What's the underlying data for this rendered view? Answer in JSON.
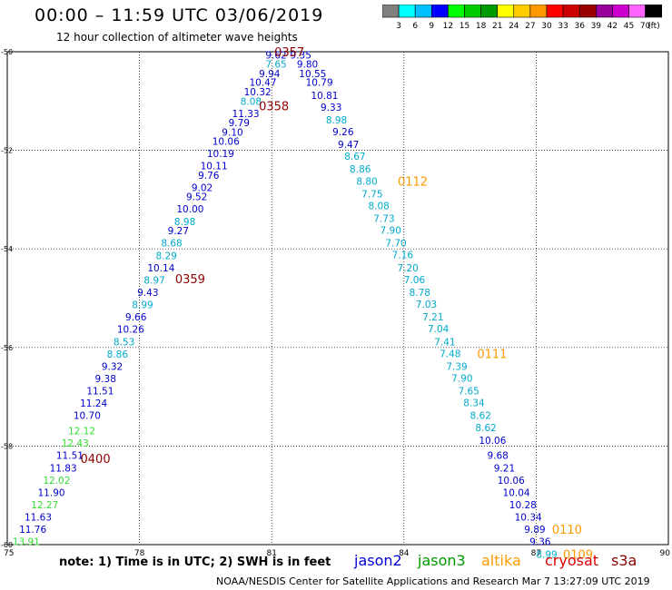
{
  "header": {
    "title": "00:00 – 11:59 UTC 03/06/2019",
    "subtitle": "12 hour collection of altimeter wave heights"
  },
  "colorbar": {
    "unit": "(ft)",
    "labels": [
      "3",
      "6",
      "9",
      "12",
      "15",
      "18",
      "21",
      "24",
      "27",
      "30",
      "33",
      "36",
      "39",
      "42",
      "45",
      "70"
    ],
    "colors": [
      "#808080",
      "#00ffff",
      "#00bfff",
      "#0000ff",
      "#00ff00",
      "#00cc00",
      "#009900",
      "#ffff00",
      "#ffcc00",
      "#ff9900",
      "#ff0000",
      "#cc0000",
      "#990000",
      "#990099",
      "#cc00cc",
      "#ff66ff",
      "#000000"
    ]
  },
  "map": {
    "x_ticks": [
      "75",
      "78",
      "81",
      "84",
      "87",
      "90"
    ],
    "y_ticks": [
      "-50",
      "-52",
      "-54",
      "-56",
      "-58",
      "-60"
    ],
    "x_range": [
      75,
      90
    ],
    "y_range": [
      -60,
      -50
    ],
    "gridlines": true
  },
  "observations": [
    {
      "lon": 81.1,
      "lat": -50.06,
      "v": "9.62",
      "c": "#0000cc"
    },
    {
      "lon": 81.1,
      "lat": -50.25,
      "v": "7.65",
      "c": "#00aacc"
    },
    {
      "lon": 80.95,
      "lat": -50.44,
      "v": "9.94",
      "c": "#0000cc"
    },
    {
      "lon": 80.8,
      "lat": -50.62,
      "v": "10.47",
      "c": "#0000cc"
    },
    {
      "lon": 80.68,
      "lat": -50.81,
      "v": "10.32",
      "c": "#0000cc"
    },
    {
      "lon": 80.53,
      "lat": -51.0,
      "v": "8.08",
      "c": "#00aacc"
    },
    {
      "lon": 80.41,
      "lat": -51.25,
      "v": "11.33",
      "c": "#0000cc"
    },
    {
      "lon": 80.26,
      "lat": -51.44,
      "v": "9.79",
      "c": "#0000cc"
    },
    {
      "lon": 80.11,
      "lat": -51.63,
      "v": "9.10",
      "c": "#0000cc"
    },
    {
      "lon": 79.96,
      "lat": -51.81,
      "v": "10.06",
      "c": "#0000cc"
    },
    {
      "lon": 79.84,
      "lat": -52.06,
      "v": "10.19",
      "c": "#0000cc"
    },
    {
      "lon": 79.69,
      "lat": -52.31,
      "v": "10.11",
      "c": "#0000cc"
    },
    {
      "lon": 79.57,
      "lat": -52.5,
      "v": "9.76",
      "c": "#0000cc"
    },
    {
      "lon": 79.42,
      "lat": -52.75,
      "v": "9.02",
      "c": "#0000cc"
    },
    {
      "lon": 79.3,
      "lat": -52.94,
      "v": "9.52",
      "c": "#0000cc"
    },
    {
      "lon": 79.15,
      "lat": -53.19,
      "v": "10.00",
      "c": "#0000cc"
    },
    {
      "lon": 79.03,
      "lat": -53.44,
      "v": "8.98",
      "c": "#00aacc"
    },
    {
      "lon": 78.88,
      "lat": -53.63,
      "v": "9.27",
      "c": "#0000cc"
    },
    {
      "lon": 78.73,
      "lat": -53.88,
      "v": "8.68",
      "c": "#00aacc"
    },
    {
      "lon": 78.61,
      "lat": -54.13,
      "v": "8.29",
      "c": "#00aacc"
    },
    {
      "lon": 78.49,
      "lat": -54.38,
      "v": "10.14",
      "c": "#0000cc"
    },
    {
      "lon": 78.34,
      "lat": -54.63,
      "v": "8.97",
      "c": "#00aacc"
    },
    {
      "lon": 78.19,
      "lat": -54.88,
      "v": "9.43",
      "c": "#0000cc"
    },
    {
      "lon": 78.07,
      "lat": -55.13,
      "v": "8.99",
      "c": "#00aacc"
    },
    {
      "lon": 77.92,
      "lat": -55.38,
      "v": "9.66",
      "c": "#0000cc"
    },
    {
      "lon": 77.8,
      "lat": -55.63,
      "v": "10.26",
      "c": "#0000cc"
    },
    {
      "lon": 77.65,
      "lat": -55.88,
      "v": "8.53",
      "c": "#00aacc"
    },
    {
      "lon": 77.5,
      "lat": -56.13,
      "v": "8.86",
      "c": "#00aacc"
    },
    {
      "lon": 77.38,
      "lat": -56.38,
      "v": "9.32",
      "c": "#0000cc"
    },
    {
      "lon": 77.23,
      "lat": -56.63,
      "v": "9.38",
      "c": "#0000cc"
    },
    {
      "lon": 77.11,
      "lat": -56.88,
      "v": "11.51",
      "c": "#0000cc"
    },
    {
      "lon": 76.96,
      "lat": -57.13,
      "v": "11.24",
      "c": "#0000cc"
    },
    {
      "lon": 76.81,
      "lat": -57.38,
      "v": "10.70",
      "c": "#0000cc"
    },
    {
      "lon": 76.69,
      "lat": -57.69,
      "v": "12.12",
      "c": "#33dd33"
    },
    {
      "lon": 76.54,
      "lat": -57.94,
      "v": "12.43",
      "c": "#33dd33"
    },
    {
      "lon": 76.42,
      "lat": -58.19,
      "v": "11.51",
      "c": "#0000cc"
    },
    {
      "lon": 76.27,
      "lat": -58.44,
      "v": "11.83",
      "c": "#0000cc"
    },
    {
      "lon": 76.12,
      "lat": -58.69,
      "v": "12.02",
      "c": "#33dd33"
    },
    {
      "lon": 76.0,
      "lat": -58.94,
      "v": "11.90",
      "c": "#0000cc"
    },
    {
      "lon": 75.85,
      "lat": -59.19,
      "v": "12.27",
      "c": "#33dd33"
    },
    {
      "lon": 75.7,
      "lat": -59.44,
      "v": "11.63",
      "c": "#0000cc"
    },
    {
      "lon": 75.58,
      "lat": -59.69,
      "v": "11.76",
      "c": "#0000cc"
    },
    {
      "lon": 75.43,
      "lat": -59.94,
      "v": "13.91",
      "c": "#33dd33"
    },
    {
      "lon": 81.66,
      "lat": -50.06,
      "v": "9.35",
      "c": "#0000cc"
    },
    {
      "lon": 81.81,
      "lat": -50.25,
      "v": "9.80",
      "c": "#0000cc"
    },
    {
      "lon": 81.93,
      "lat": -50.44,
      "v": "10.55",
      "c": "#0000cc"
    },
    {
      "lon": 82.08,
      "lat": -50.62,
      "v": "10.79",
      "c": "#0000cc"
    },
    {
      "lon": 82.2,
      "lat": -50.88,
      "v": "10.81",
      "c": "#0000cc"
    },
    {
      "lon": 82.35,
      "lat": -51.12,
      "v": "9.33",
      "c": "#0000cc"
    },
    {
      "lon": 82.47,
      "lat": -51.38,
      "v": "8.98",
      "c": "#00aacc"
    },
    {
      "lon": 82.62,
      "lat": -51.62,
      "v": "9.26",
      "c": "#0000cc"
    },
    {
      "lon": 82.74,
      "lat": -51.88,
      "v": "9.47",
      "c": "#0000cc"
    },
    {
      "lon": 82.89,
      "lat": -52.12,
      "v": "8.67",
      "c": "#00aacc"
    },
    {
      "lon": 83.01,
      "lat": -52.38,
      "v": "8.86",
      "c": "#00aacc"
    },
    {
      "lon": 83.16,
      "lat": -52.62,
      "v": "8.80",
      "c": "#00aacc"
    },
    {
      "lon": 83.28,
      "lat": -52.88,
      "v": "7.75",
      "c": "#00aacc"
    },
    {
      "lon": 83.43,
      "lat": -53.12,
      "v": "8.08",
      "c": "#00aacc"
    },
    {
      "lon": 83.55,
      "lat": -53.38,
      "v": "7.73",
      "c": "#00aacc"
    },
    {
      "lon": 83.7,
      "lat": -53.62,
      "v": "7.90",
      "c": "#00aacc"
    },
    {
      "lon": 83.82,
      "lat": -53.88,
      "v": "7.70",
      "c": "#00aacc"
    },
    {
      "lon": 83.97,
      "lat": -54.12,
      "v": "7.16",
      "c": "#00aacc"
    },
    {
      "lon": 84.09,
      "lat": -54.38,
      "v": "7.20",
      "c": "#00aacc"
    },
    {
      "lon": 84.24,
      "lat": -54.62,
      "v": "7.06",
      "c": "#00aacc"
    },
    {
      "lon": 84.36,
      "lat": -54.88,
      "v": "8.78",
      "c": "#00aacc"
    },
    {
      "lon": 84.51,
      "lat": -55.12,
      "v": "7.03",
      "c": "#00aacc"
    },
    {
      "lon": 84.66,
      "lat": -55.38,
      "v": "7.21",
      "c": "#00aacc"
    },
    {
      "lon": 84.78,
      "lat": -55.62,
      "v": "7.04",
      "c": "#00aacc"
    },
    {
      "lon": 84.93,
      "lat": -55.88,
      "v": "7.41",
      "c": "#00aacc"
    },
    {
      "lon": 85.05,
      "lat": -56.12,
      "v": "7.48",
      "c": "#00aacc"
    },
    {
      "lon": 85.2,
      "lat": -56.38,
      "v": "7.39",
      "c": "#00aacc"
    },
    {
      "lon": 85.32,
      "lat": -56.62,
      "v": "7.90",
      "c": "#00aacc"
    },
    {
      "lon": 85.47,
      "lat": -56.88,
      "v": "7.65",
      "c": "#00aacc"
    },
    {
      "lon": 85.59,
      "lat": -57.12,
      "v": "8.34",
      "c": "#00aacc"
    },
    {
      "lon": 85.74,
      "lat": -57.38,
      "v": "8.62",
      "c": "#00aacc"
    },
    {
      "lon": 85.86,
      "lat": -57.62,
      "v": "8.62",
      "c": "#00aacc"
    },
    {
      "lon": 86.01,
      "lat": -57.88,
      "v": "10.06",
      "c": "#0000cc"
    },
    {
      "lon": 86.13,
      "lat": -58.19,
      "v": "9.68",
      "c": "#0000cc"
    },
    {
      "lon": 86.28,
      "lat": -58.44,
      "v": "9.21",
      "c": "#0000cc"
    },
    {
      "lon": 86.43,
      "lat": -58.69,
      "v": "10.06",
      "c": "#0000cc"
    },
    {
      "lon": 86.55,
      "lat": -58.94,
      "v": "10.04",
      "c": "#0000cc"
    },
    {
      "lon": 86.7,
      "lat": -59.19,
      "v": "10.28",
      "c": "#0000cc"
    },
    {
      "lon": 86.82,
      "lat": -59.44,
      "v": "10.34",
      "c": "#0000cc"
    },
    {
      "lon": 86.97,
      "lat": -59.69,
      "v": "9.89",
      "c": "#0000cc"
    },
    {
      "lon": 87.09,
      "lat": -59.94,
      "v": "9.36",
      "c": "#0000cc"
    },
    {
      "lon": 87.24,
      "lat": -60.19,
      "v": "8.99",
      "c": "#00aacc"
    }
  ],
  "time_labels": [
    {
      "lon": 81.4,
      "lat": -50.0,
      "t": "0357",
      "c": "#8b0000"
    },
    {
      "lon": 81.05,
      "lat": -51.1,
      "t": "0358",
      "c": "#8b0000"
    },
    {
      "lon": 79.15,
      "lat": -54.6,
      "t": "0359",
      "c": "#8b0000"
    },
    {
      "lon": 77.0,
      "lat": -58.25,
      "t": "0400",
      "c": "#8b0000"
    },
    {
      "lon": 84.2,
      "lat": -52.62,
      "t": "0112",
      "c": "#ff9900"
    },
    {
      "lon": 86.0,
      "lat": -56.12,
      "t": "0111",
      "c": "#ff9900"
    },
    {
      "lon": 87.7,
      "lat": -59.69,
      "t": "0110",
      "c": "#ff9900"
    },
    {
      "lon": 87.95,
      "lat": -60.19,
      "t": "0109",
      "c": "#ff9900"
    }
  ],
  "note": "note:  1) Time is in UTC;  2) SWH is in feet",
  "satellites": [
    {
      "name": "jason2",
      "color": "#0000dd"
    },
    {
      "name": "jason3",
      "color": "#009900"
    },
    {
      "name": "altika",
      "color": "#ff9900"
    },
    {
      "name": "cryosat",
      "color": "#dd0000"
    },
    {
      "name": "s3a",
      "color": "#880000"
    }
  ],
  "footer": "NOAA/NESDIS Center for Satellite Applications and Research    Mar  7 13:27:09 UTC 2019"
}
